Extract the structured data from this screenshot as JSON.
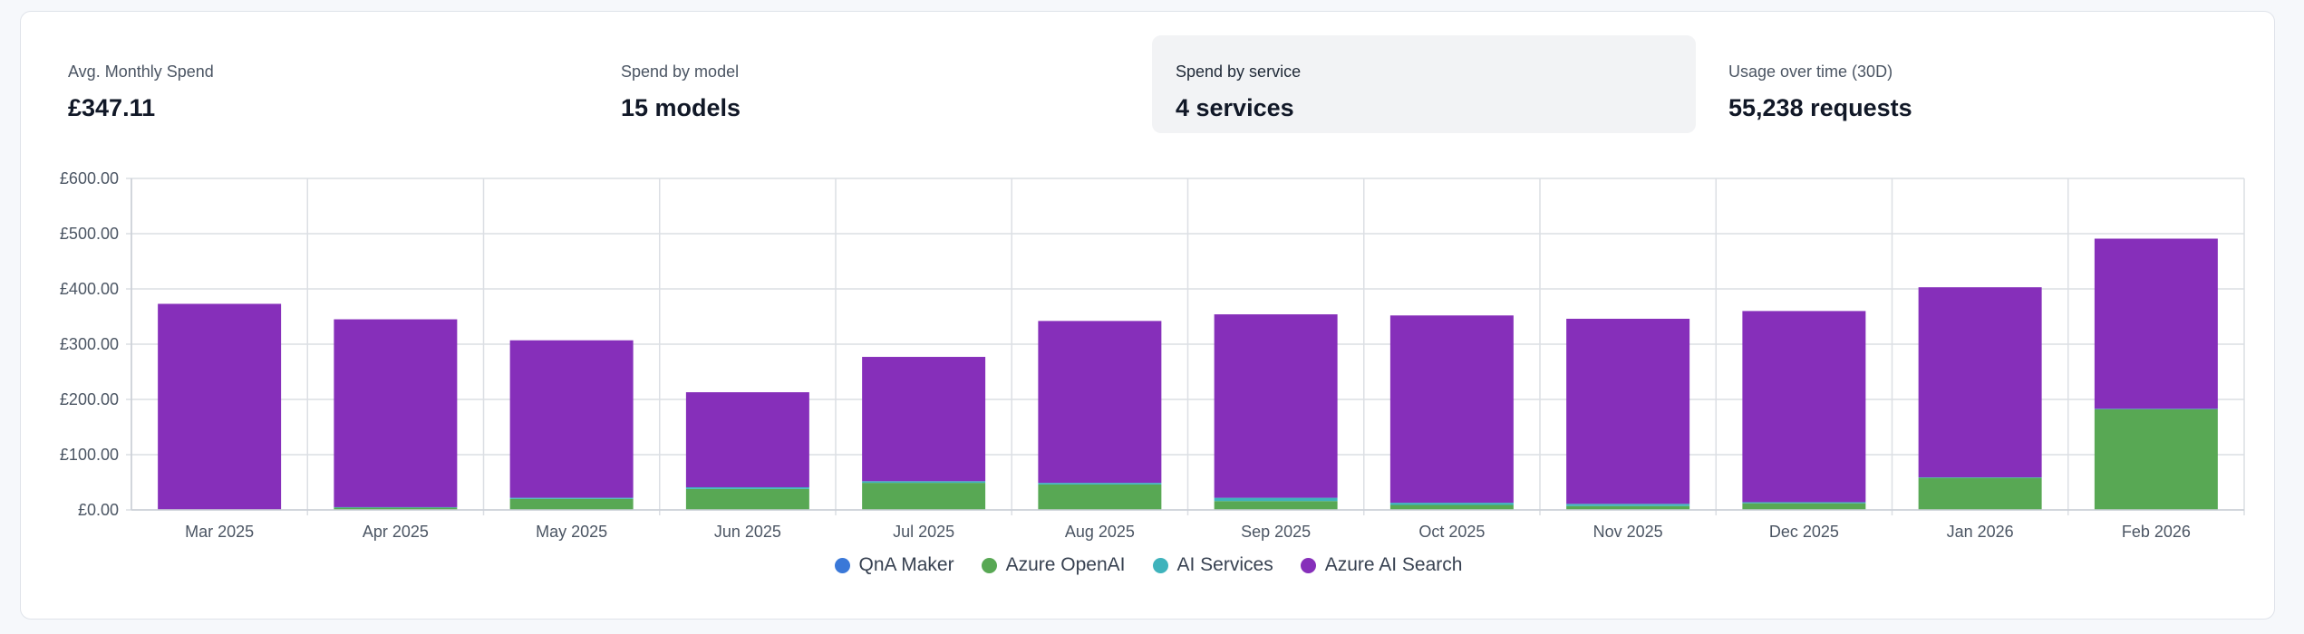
{
  "metrics": [
    {
      "label": "Avg. Monthly Spend",
      "value": "£347.11"
    },
    {
      "label": "Spend by model",
      "value": "15 models"
    },
    {
      "label": "Spend by service",
      "value": "4 services"
    },
    {
      "label": "Usage over time (30D)",
      "value": "55,238 requests"
    }
  ],
  "colors": {
    "qna_maker": "#3a78d8",
    "azure_openai": "#58a854",
    "ai_services": "#3fb3bc",
    "azure_ai_search": "#862fba",
    "grid": "#dcdfe4"
  },
  "legend": [
    {
      "label": "QnA Maker",
      "color": "#3a78d8"
    },
    {
      "label": "Azure OpenAI",
      "color": "#58a854"
    },
    {
      "label": "AI Services",
      "color": "#3fb3bc"
    },
    {
      "label": "Azure AI Search",
      "color": "#862fba"
    }
  ],
  "chart_data": {
    "type": "bar",
    "stacked": true,
    "categories": [
      "Mar 2025",
      "Apr 2025",
      "May 2025",
      "Jun 2025",
      "Jul 2025",
      "Aug 2025",
      "Sep 2025",
      "Oct 2025",
      "Nov 2025",
      "Dec 2025",
      "Jan 2026",
      "Feb 2026"
    ],
    "series": [
      {
        "name": "QnA Maker",
        "color": "#3a78d8",
        "values": [
          0,
          0,
          0,
          0,
          0,
          0,
          0,
          0,
          0,
          0,
          0,
          0
        ]
      },
      {
        "name": "Azure OpenAI",
        "color": "#58a854",
        "values": [
          1,
          4,
          20,
          38,
          49,
          46,
          16,
          9,
          7,
          12,
          58,
          182
        ]
      },
      {
        "name": "AI Services",
        "color": "#3fb3bc",
        "values": [
          0,
          1,
          2,
          3,
          3,
          3,
          6,
          4,
          4,
          2,
          1,
          1
        ]
      },
      {
        "name": "Azure AI Search",
        "color": "#862fba",
        "values": [
          372,
          340,
          285,
          172,
          225,
          293,
          332,
          339,
          335,
          346,
          344,
          308
        ]
      }
    ],
    "y_ticks": [
      "£0.00",
      "£100.00",
      "£200.00",
      "£300.00",
      "£400.00",
      "£500.00",
      "£600.00"
    ],
    "ylim": [
      0,
      600
    ],
    "grid": true,
    "legend_position": "bottom"
  }
}
